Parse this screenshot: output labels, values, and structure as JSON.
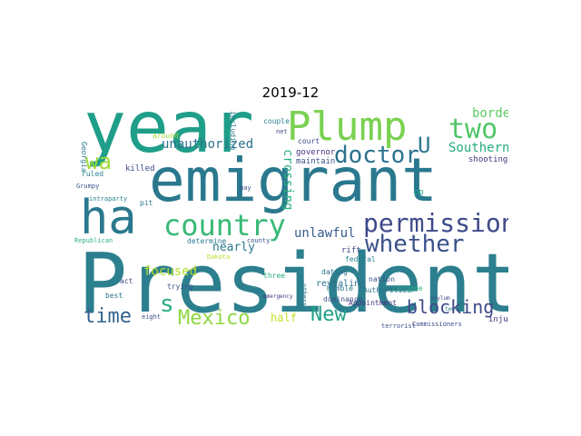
{
  "title": "2019-12",
  "words": [
    {
      "text": "President",
      "color": "#2c7f8e"
    },
    {
      "text": "year",
      "color": "#1f9e89"
    },
    {
      "text": "emigrant",
      "color": "#2a788e"
    },
    {
      "text": "Plump",
      "color": "#7ad151"
    },
    {
      "text": "ha",
      "color": "#2a788e"
    },
    {
      "text": "country",
      "color": "#38b977"
    },
    {
      "text": "permission",
      "color": "#3e4a89"
    },
    {
      "text": "whether",
      "color": "#3b518b"
    },
    {
      "text": "doctor",
      "color": "#2c728e"
    },
    {
      "text": "two",
      "color": "#52c569"
    },
    {
      "text": "wa",
      "color": "#a0da39"
    },
    {
      "text": "U",
      "color": "#2a788e"
    },
    {
      "text": "s",
      "color": "#2ab07f"
    },
    {
      "text": "time",
      "color": "#33638d"
    },
    {
      "text": "Mexico",
      "color": "#8fd744"
    },
    {
      "text": "New",
      "color": "#1fa187"
    },
    {
      "text": "blocking",
      "color": "#3e4a89"
    },
    {
      "text": "Southern",
      "color": "#25ac82"
    },
    {
      "text": "unauthorized",
      "color": "#2c728e"
    },
    {
      "text": "focused",
      "color": "#b5de2b"
    },
    {
      "text": "unlawful",
      "color": "#365d8d"
    },
    {
      "text": "nearly",
      "color": "#2a788e"
    },
    {
      "text": "border",
      "color": "#5ec962"
    },
    {
      "text": "crossing",
      "color": "#2ab07f"
    },
    {
      "text": "actually",
      "color": "#31688e"
    },
    {
      "text": "entered",
      "color": "#1f9e89"
    },
    {
      "text": "half",
      "color": "#c2df23"
    },
    {
      "text": "revealing",
      "color": "#2c728e"
    },
    {
      "text": "injured",
      "color": "#443983"
    },
    {
      "text": "killed",
      "color": "#3e4a89"
    },
    {
      "text": "shooting",
      "color": "#46327e"
    },
    {
      "text": "governor",
      "color": "#472d7b"
    },
    {
      "text": "maintain",
      "color": "#3b528b"
    },
    {
      "text": "court",
      "color": "#3e4989"
    },
    {
      "text": "couple",
      "color": "#26828e"
    },
    {
      "text": "including",
      "color": "#2a788e"
    },
    {
      "text": "dominance",
      "color": "#3b528b"
    },
    {
      "text": "Authorities",
      "color": "#2a768e"
    },
    {
      "text": "determine",
      "color": "#2a788e"
    },
    {
      "text": "county",
      "color": "#3b528b"
    },
    {
      "text": "rift",
      "color": "#3e4989"
    },
    {
      "text": "dating",
      "color": "#2c728e"
    },
    {
      "text": "Humble",
      "color": "#2a788e"
    },
    {
      "text": "federal",
      "color": "#26828e"
    },
    {
      "text": "nation",
      "color": "#3b528b"
    },
    {
      "text": "refugee",
      "color": "#2ab07f"
    },
    {
      "text": "terrorist",
      "color": "#3b528b"
    },
    {
      "text": "Commissioners",
      "color": "#3e4989"
    },
    {
      "text": "Appointment",
      "color": "#46327e"
    },
    {
      "text": "others",
      "color": "#2a788e"
    },
    {
      "text": "three",
      "color": "#2ab07f"
    },
    {
      "text": "trying",
      "color": "#3b528b"
    },
    {
      "text": "act",
      "color": "#3b528b"
    },
    {
      "text": "best",
      "color": "#2c728e"
    },
    {
      "text": "eight",
      "color": "#3b528b"
    },
    {
      "text": "Georgia",
      "color": "#2a788e"
    },
    {
      "text": "ruled",
      "color": "#26828e"
    },
    {
      "text": "Grumpy",
      "color": "#3b528b"
    },
    {
      "text": "intraparty",
      "color": "#26828e"
    },
    {
      "text": "Republican",
      "color": "#2ab07f"
    },
    {
      "text": "around",
      "color": "#a0da39"
    },
    {
      "text": "may",
      "color": "#3b528b"
    },
    {
      "text": "net",
      "color": "#3e4989"
    },
    {
      "text": "pp",
      "color": "#1fa187"
    },
    {
      "text": "pit",
      "color": "#2a788e"
    },
    {
      "text": "emergency",
      "color": "#46327e"
    },
    {
      "text": "asylum",
      "color": "#3e4989"
    },
    {
      "text": "tens",
      "color": "#2a788e"
    },
    {
      "text": "Dakota",
      "color": "#b5de2b"
    }
  ]
}
